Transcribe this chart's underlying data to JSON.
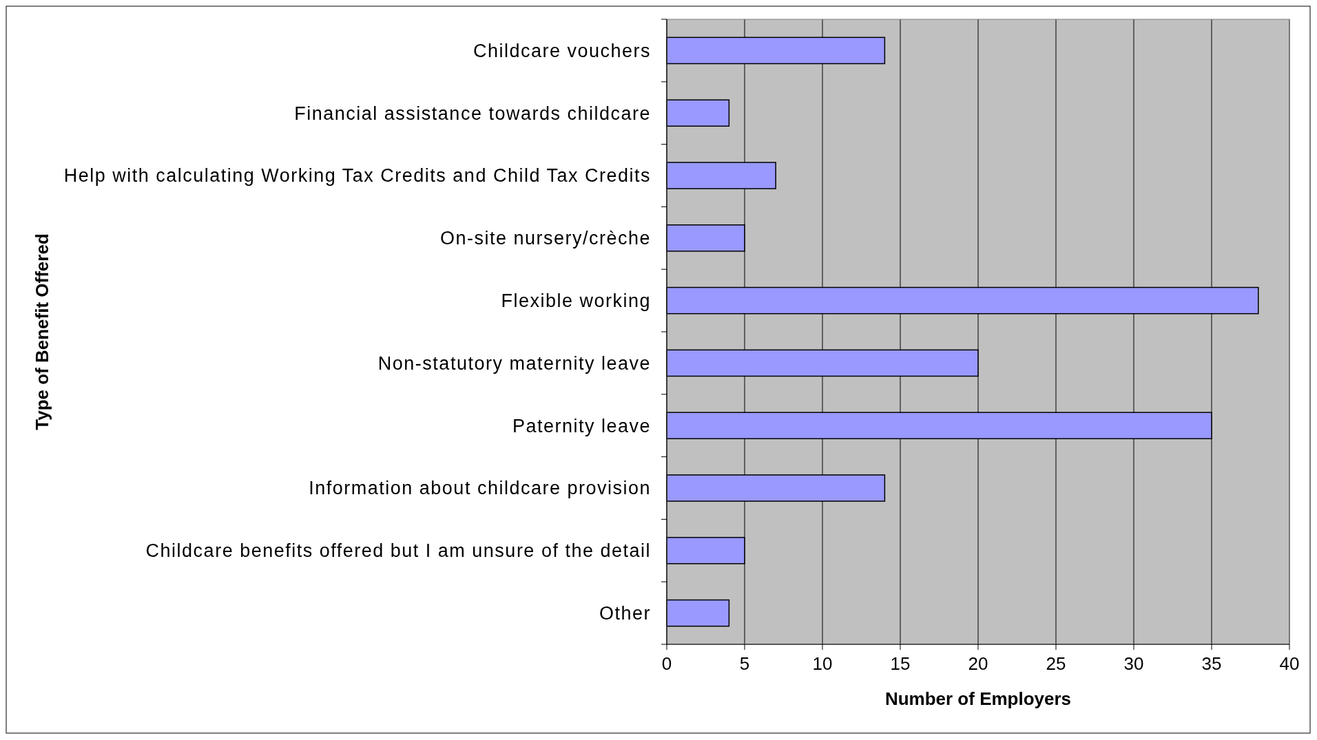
{
  "chart_data": {
    "type": "bar",
    "orientation": "horizontal",
    "xlabel": "Number of Employers",
    "ylabel": "Type of Benefit Offered",
    "categories": [
      "Childcare vouchers",
      "Financial assistance towards childcare",
      "Help with calculating Working Tax Credits and Child Tax Credits",
      "On-site nursery/crèche",
      "Flexible working",
      "Non-statutory maternity leave",
      "Paternity leave",
      "Information about childcare provision",
      "Childcare benefits offered but I am unsure of the detail",
      "Other"
    ],
    "values": [
      14,
      4,
      7,
      5,
      38,
      20,
      35,
      14,
      5,
      4
    ],
    "color": "#9999ff",
    "xlim": [
      0,
      40
    ],
    "xticks": [
      0,
      5,
      10,
      15,
      20,
      25,
      30,
      35,
      40
    ],
    "grid": "x"
  }
}
